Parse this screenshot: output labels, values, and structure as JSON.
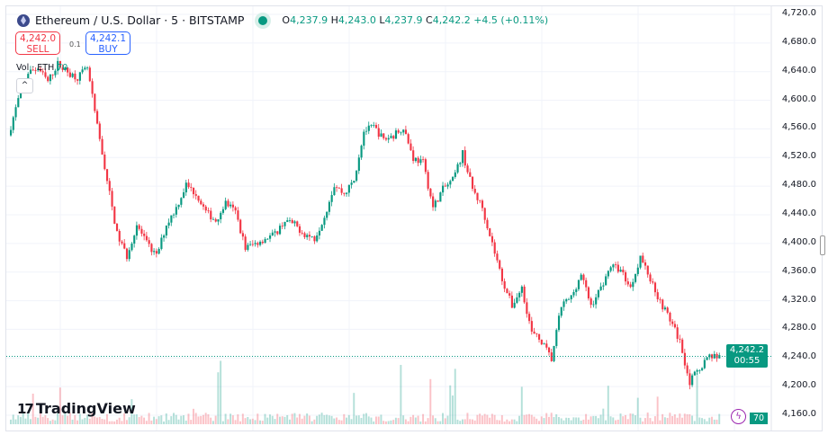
{
  "header": {
    "symbol": "Ethereum / U.S. Dollar · 5 · BITSTAMP",
    "open_label": "O",
    "open": "4,237.9",
    "high_label": "H",
    "high": "4,243.0",
    "low_label": "L",
    "low": "4,237.9",
    "close_label": "C",
    "close": "4,242.2",
    "change": "+4.5 (+0.11%)"
  },
  "trade": {
    "sell_price": "4,242.0",
    "sell_label": "SELL",
    "buy_price": "4,242.1",
    "buy_label": "BUY",
    "spread": "0.1"
  },
  "volume": {
    "label": "Vol · ETH",
    "value": "70"
  },
  "price_tag": {
    "price": "4,242.2",
    "countdown": "00:55"
  },
  "volume_badge": "70",
  "branding": "TradingView",
  "colors": {
    "up": "#089981",
    "down": "#f23645",
    "grid": "#f0f3fa"
  },
  "chart_data": {
    "type": "candlestick",
    "yaxis_ticks": [
      "4,720.0",
      "4,680.0",
      "4,640.0",
      "4,600.0",
      "4,560.0",
      "4,520.0",
      "4,480.0",
      "4,440.0",
      "4,400.0",
      "4,360.0",
      "4,320.0",
      "4,280.0",
      "4,240.0",
      "4,200.0",
      "4,160.0"
    ],
    "ylim": [
      4160,
      4720
    ],
    "grid": true,
    "last_price": 4242.2,
    "closes": [
      4551,
      4601,
      4639,
      4645,
      4626,
      4651,
      4639,
      4632,
      4645,
      4563,
      4488,
      4413,
      4382,
      4426,
      4400,
      4382,
      4426,
      4450,
      4482,
      4469,
      4444,
      4432,
      4457,
      4444,
      4394,
      4400,
      4407,
      4413,
      4432,
      4426,
      4413,
      4407,
      4438,
      4482,
      4469,
      4488,
      4557,
      4563,
      4545,
      4551,
      4563,
      4519,
      4513,
      4450,
      4476,
      4488,
      4526,
      4476,
      4450,
      4400,
      4350,
      4313,
      4338,
      4275,
      4263,
      4238,
      4313,
      4325,
      4357,
      4313,
      4338,
      4369,
      4363,
      4338,
      4382,
      4350,
      4319,
      4294,
      4263,
      4206,
      4226,
      4244,
      4242
    ]
  }
}
